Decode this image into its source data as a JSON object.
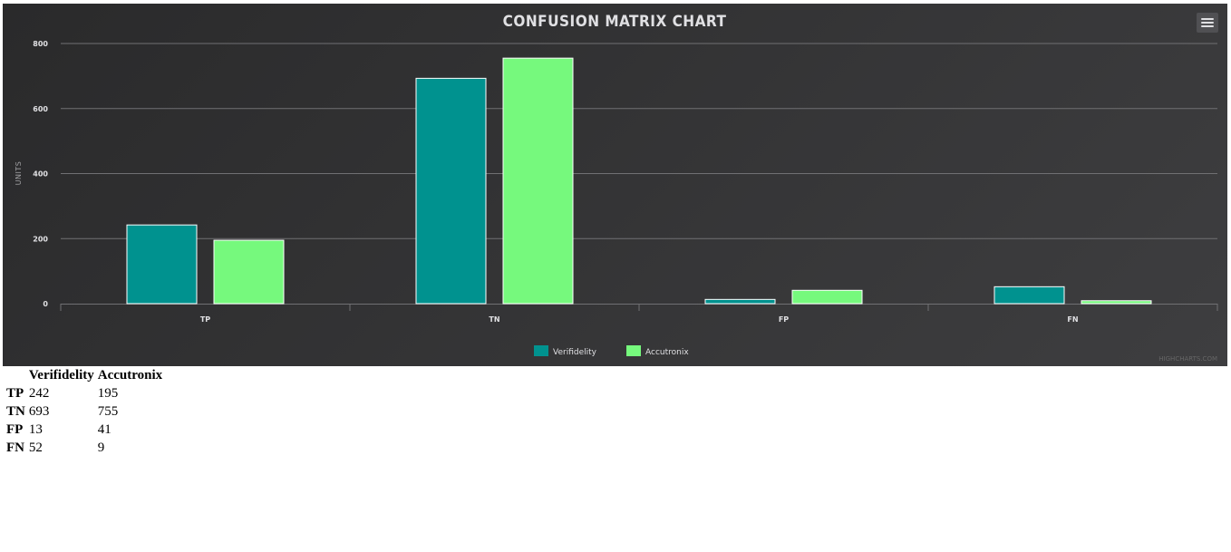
{
  "chart_data": {
    "type": "bar",
    "title": "CONFUSION MATRIX CHART",
    "xlabel": "",
    "ylabel": "UNITS",
    "categories": [
      "TP",
      "TN",
      "FP",
      "FN"
    ],
    "series": [
      {
        "name": "Verifidelity",
        "values": [
          242,
          693,
          13,
          52
        ],
        "color": "#00928f"
      },
      {
        "name": "Accutronix",
        "values": [
          195,
          755,
          41,
          9
        ],
        "color": "#76f97d"
      }
    ],
    "ylim": [
      0,
      800
    ],
    "yticks": [
      0,
      200,
      400,
      600,
      800
    ],
    "grid": true,
    "legend": "bottom-center",
    "credits": "HIGHCHARTS.COM"
  },
  "table": {
    "headers": [
      "",
      "Verifidelity",
      "Accutronix"
    ],
    "rows": [
      {
        "label": "TP",
        "values": [
          "242",
          "195"
        ]
      },
      {
        "label": "TN",
        "values": [
          "693",
          "755"
        ]
      },
      {
        "label": "FP",
        "values": [
          "13",
          "41"
        ]
      },
      {
        "label": "FN",
        "values": [
          "52",
          "9"
        ]
      }
    ]
  },
  "icons": {
    "menu": "hamburger-menu-icon"
  },
  "colors": {
    "background": "#2a2a2b",
    "grid": "#707073",
    "text": "#e0e0e3"
  }
}
